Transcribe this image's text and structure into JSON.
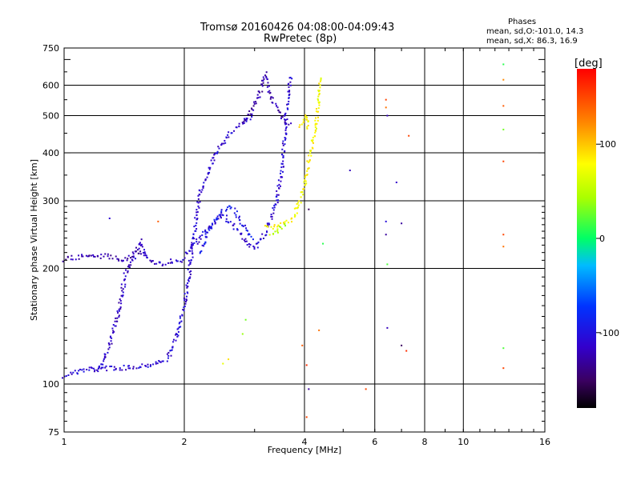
{
  "header": {
    "title_line1": "Tromsø 20160426 04:08:00-04:09:43",
    "title_line2": "RwPretec (8p)"
  },
  "stats": {
    "heading": "Phases",
    "line_o": "mean, sd,O:-101.0, 14.3",
    "line_x": "mean, sd,X:  86.3, 16.9"
  },
  "colorbar": {
    "unit": "[deg]",
    "ticks": [
      {
        "label": "100",
        "value": 100
      },
      {
        "label": "0",
        "value": 0
      },
      {
        "label": "-100",
        "value": -100
      }
    ],
    "range": [
      -180,
      180
    ]
  },
  "chart_data": {
    "type": "scatter",
    "xlabel": "Frequency [MHz]",
    "ylabel": "Stationary phase Virtual Height [km]",
    "x_scale": "log",
    "y_scale": "log",
    "xlim": [
      1,
      16
    ],
    "ylim": [
      75,
      750
    ],
    "xticks": [
      {
        "v": 1,
        "label": "1"
      },
      {
        "v": 2,
        "label": "2"
      },
      {
        "v": 4,
        "label": "4"
      },
      {
        "v": 6,
        "label": "6"
      },
      {
        "v": 8,
        "label": "8"
      },
      {
        "v": 10,
        "label": "10"
      },
      {
        "v": 16,
        "label": "16"
      }
    ],
    "xgrid": [
      2,
      4,
      6,
      8,
      10
    ],
    "yticks": [
      {
        "v": 75,
        "label": "75"
      },
      {
        "v": 100,
        "label": "100"
      },
      {
        "v": 200,
        "label": "200"
      },
      {
        "v": 300,
        "label": "300"
      },
      {
        "v": 400,
        "label": "400"
      },
      {
        "v": 500,
        "label": "500"
      },
      {
        "v": 600,
        "label": "600"
      },
      {
        "v": 750,
        "label": "750"
      }
    ],
    "ygrid": [
      100,
      200,
      300,
      400,
      500,
      600
    ],
    "grid": true,
    "traces": [
      {
        "phase": -110,
        "points": [
          [
            1.0,
            105
          ],
          [
            1.05,
            107
          ],
          [
            1.1,
            108
          ],
          [
            1.2,
            110
          ],
          [
            1.3,
            110
          ],
          [
            1.4,
            110
          ],
          [
            1.5,
            111
          ],
          [
            1.6,
            112
          ],
          [
            1.7,
            113
          ],
          [
            1.8,
            116
          ],
          [
            1.85,
            120
          ],
          [
            1.9,
            130
          ],
          [
            1.95,
            145
          ],
          [
            2.0,
            160
          ],
          [
            2.05,
            190
          ],
          [
            2.1,
            230
          ],
          [
            2.15,
            280
          ],
          [
            2.2,
            320
          ],
          [
            2.3,
            360
          ],
          [
            2.4,
            400
          ],
          [
            2.6,
            450
          ],
          [
            2.8,
            480
          ],
          [
            3.0,
            500
          ]
        ]
      },
      {
        "phase": -115,
        "points": [
          [
            1.2,
            107
          ],
          [
            1.25,
            115
          ],
          [
            1.3,
            125
          ],
          [
            1.35,
            145
          ],
          [
            1.38,
            160
          ],
          [
            1.42,
            190
          ],
          [
            1.46,
            205
          ],
          [
            1.5,
            215
          ],
          [
            1.55,
            235
          ],
          [
            1.6,
            215
          ],
          [
            1.7,
            205
          ],
          [
            1.8,
            207
          ],
          [
            1.9,
            210
          ],
          [
            2.0,
            210
          ]
        ]
      },
      {
        "phase": -125,
        "points": [
          [
            1.0,
            210
          ],
          [
            1.05,
            213
          ],
          [
            1.1,
            215
          ],
          [
            1.15,
            215
          ],
          [
            1.2,
            215
          ],
          [
            1.3,
            215
          ],
          [
            1.4,
            210
          ],
          [
            1.45,
            215
          ],
          [
            1.5,
            218
          ],
          [
            1.55,
            220
          ],
          [
            1.6,
            215
          ]
        ]
      },
      {
        "phase": -110,
        "points": [
          [
            2.0,
            215
          ],
          [
            2.1,
            230
          ],
          [
            2.2,
            240
          ],
          [
            2.3,
            255
          ],
          [
            2.4,
            265
          ],
          [
            2.5,
            275
          ],
          [
            2.6,
            265
          ],
          [
            2.7,
            255
          ],
          [
            2.8,
            240
          ],
          [
            2.9,
            230
          ],
          [
            3.0,
            225
          ],
          [
            3.1,
            235
          ],
          [
            3.2,
            250
          ],
          [
            3.3,
            270
          ],
          [
            3.4,
            300
          ],
          [
            3.5,
            350
          ],
          [
            3.55,
            420
          ],
          [
            3.6,
            500
          ],
          [
            3.65,
            580
          ],
          [
            3.7,
            640
          ]
        ]
      },
      {
        "phase": -95,
        "points": [
          [
            2.2,
            220
          ],
          [
            2.3,
            250
          ],
          [
            2.4,
            270
          ],
          [
            2.5,
            285
          ],
          [
            2.6,
            290
          ],
          [
            2.7,
            280
          ],
          [
            2.8,
            260
          ],
          [
            2.9,
            245
          ],
          [
            3.0,
            240
          ]
        ]
      },
      {
        "phase": -125,
        "points": [
          [
            2.8,
            480
          ],
          [
            2.9,
            500
          ],
          [
            3.0,
            530
          ],
          [
            3.1,
            580
          ],
          [
            3.2,
            640
          ],
          [
            3.3,
            560
          ],
          [
            3.4,
            520
          ],
          [
            3.5,
            500
          ],
          [
            3.6,
            480
          ],
          [
            3.7,
            470
          ]
        ]
      },
      {
        "phase": 80,
        "points": [
          [
            3.2,
            255
          ],
          [
            3.3,
            255
          ],
          [
            3.5,
            260
          ],
          [
            3.6,
            262
          ],
          [
            3.7,
            265
          ],
          [
            3.8,
            280
          ],
          [
            3.9,
            300
          ],
          [
            4.0,
            330
          ],
          [
            4.1,
            380
          ],
          [
            4.2,
            430
          ],
          [
            4.3,
            500
          ],
          [
            4.35,
            560
          ],
          [
            4.4,
            630
          ]
        ]
      },
      {
        "phase": 50,
        "points": [
          [
            3.3,
            245
          ],
          [
            3.4,
            250
          ],
          [
            3.5,
            255
          ],
          [
            3.6,
            260
          ]
        ]
      },
      {
        "phase": 85,
        "points": [
          [
            3.9,
            470
          ],
          [
            4.0,
            480
          ],
          [
            4.05,
            500
          ],
          [
            4.1,
            460
          ]
        ]
      }
    ],
    "isolated_points": [
      {
        "x": 1.3,
        "y": 270,
        "phase": -110
      },
      {
        "x": 1.72,
        "y": 265,
        "phase": 140
      },
      {
        "x": 2.5,
        "y": 113,
        "phase": 70
      },
      {
        "x": 2.58,
        "y": 116,
        "phase": 90
      },
      {
        "x": 2.85,
        "y": 147,
        "phase": 30
      },
      {
        "x": 2.8,
        "y": 135,
        "phase": 40
      },
      {
        "x": 3.95,
        "y": 126,
        "phase": 140
      },
      {
        "x": 4.05,
        "y": 112,
        "phase": 160
      },
      {
        "x": 4.1,
        "y": 97,
        "phase": -130
      },
      {
        "x": 4.05,
        "y": 82,
        "phase": 150
      },
      {
        "x": 4.35,
        "y": 138,
        "phase": 130
      },
      {
        "x": 4.1,
        "y": 285,
        "phase": -150
      },
      {
        "x": 4.45,
        "y": 232,
        "phase": 10
      },
      {
        "x": 5.2,
        "y": 360,
        "phase": -120
      },
      {
        "x": 5.7,
        "y": 97,
        "phase": 150
      },
      {
        "x": 6.4,
        "y": 550,
        "phase": 150
      },
      {
        "x": 6.4,
        "y": 525,
        "phase": 130
      },
      {
        "x": 6.45,
        "y": 500,
        "phase": -120
      },
      {
        "x": 6.4,
        "y": 265,
        "phase": -105
      },
      {
        "x": 6.4,
        "y": 245,
        "phase": -130
      },
      {
        "x": 6.45,
        "y": 205,
        "phase": 20
      },
      {
        "x": 6.45,
        "y": 140,
        "phase": -120
      },
      {
        "x": 6.8,
        "y": 335,
        "phase": -115
      },
      {
        "x": 7.0,
        "y": 262,
        "phase": -130
      },
      {
        "x": 7.0,
        "y": 126,
        "phase": -150
      },
      {
        "x": 7.2,
        "y": 122,
        "phase": 160
      },
      {
        "x": 7.3,
        "y": 443,
        "phase": 150
      },
      {
        "x": 12.6,
        "y": 680,
        "phase": 10
      },
      {
        "x": 12.6,
        "y": 620,
        "phase": 120
      },
      {
        "x": 12.6,
        "y": 530,
        "phase": 140
      },
      {
        "x": 12.6,
        "y": 460,
        "phase": 30
      },
      {
        "x": 12.6,
        "y": 380,
        "phase": 150
      },
      {
        "x": 12.6,
        "y": 245,
        "phase": 150
      },
      {
        "x": 12.6,
        "y": 228,
        "phase": 130
      },
      {
        "x": 12.6,
        "y": 124,
        "phase": 20
      },
      {
        "x": 12.6,
        "y": 110,
        "phase": 150
      }
    ]
  }
}
